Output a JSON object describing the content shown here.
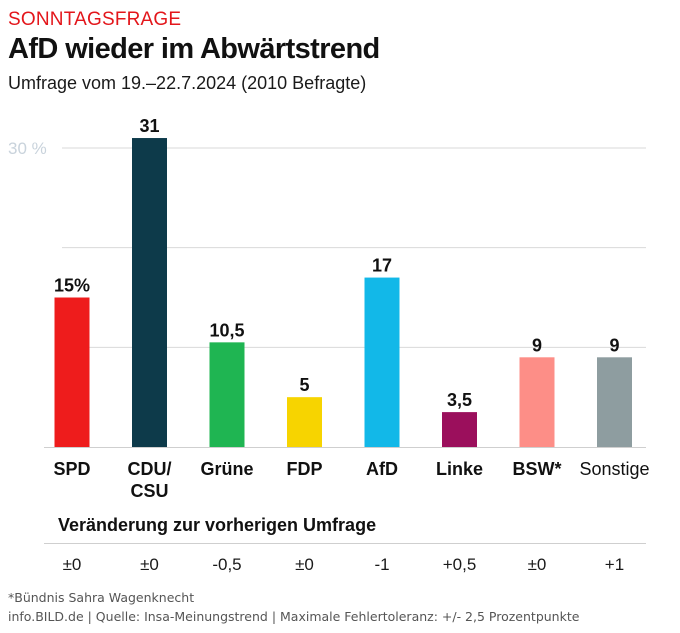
{
  "header": {
    "kicker": "SONNTAGSFRAGE",
    "title": "AfD wieder im Abwärtstrend",
    "subtitle": "Umfrage vom 19.–22.7.2024 (2010 Befragte)"
  },
  "chart_data": {
    "type": "bar",
    "categories": [
      "SPD",
      "CDU/\nCSU",
      "Grüne",
      "FDP",
      "AfD",
      "Linke",
      "BSW*",
      "Sonstige"
    ],
    "values": [
      15,
      31,
      10.5,
      5,
      17,
      3.5,
      9,
      9
    ],
    "value_labels": [
      "15%",
      "31",
      "10,5",
      "5",
      "17",
      "3,5",
      "9",
      "9"
    ],
    "colors": [
      "#ee1c1c",
      "#0d3a4a",
      "#1fb552",
      "#f7d400",
      "#12b8e8",
      "#9b0f5c",
      "#fd8e87",
      "#8e9da0"
    ],
    "category_bold": [
      true,
      true,
      true,
      true,
      true,
      true,
      true,
      false
    ],
    "y_tick_label": "30 %",
    "y_tick_value": 30,
    "ylim": [
      0,
      31
    ],
    "grid": true
  },
  "changes": {
    "heading": "Veränderung zur vorherigen Umfrage",
    "values": [
      "±0",
      "±0",
      "-0,5",
      "±0",
      "-1",
      "+0,5",
      "±0",
      "+1"
    ]
  },
  "footer": {
    "note": "*Bündnis Sahra Wagenknecht",
    "source": "info.BILD.de | Quelle: Insa-Meinungstrend | Maximale Fehlertoleranz: +/- 2,5 Prozentpunkte"
  }
}
